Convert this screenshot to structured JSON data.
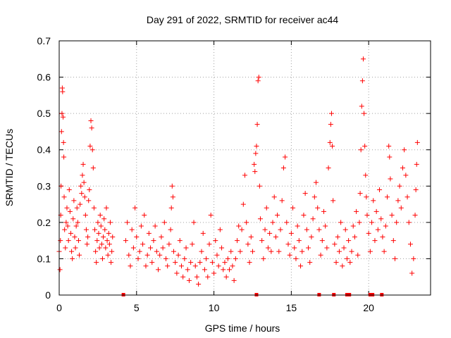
{
  "chart_data": {
    "type": "scatter",
    "title": "Day 291 of 2022, SRMTID for receiver ac44",
    "xlabel": "GPS time / hours",
    "ylabel": "SRMTID / TECUs",
    "xlim": [
      0,
      24
    ],
    "ylim": [
      0,
      0.7
    ],
    "x_ticks": [
      0,
      5,
      10,
      15,
      20
    ],
    "y_ticks": [
      0,
      0.1,
      0.2,
      0.3,
      0.4,
      0.5,
      0.6,
      0.7
    ],
    "x_tick_labels": [
      "0",
      "5",
      "10",
      "15",
      "20"
    ],
    "y_tick_labels": [
      "0",
      "0.1",
      "0.2",
      "0.3",
      "0.4",
      "0.5",
      "0.6",
      "0.7"
    ],
    "grid": true,
    "marker": "+",
    "color": "#ff0000",
    "series": [
      {
        "name": "SRMTID",
        "points": [
          [
            0.0,
            0.12
          ],
          [
            0.05,
            0.07
          ],
          [
            0.08,
            0.15
          ],
          [
            0.1,
            0.22
          ],
          [
            0.12,
            0.3
          ],
          [
            0.15,
            0.45
          ],
          [
            0.18,
            0.5
          ],
          [
            0.2,
            0.57
          ],
          [
            0.22,
            0.56
          ],
          [
            0.25,
            0.49
          ],
          [
            0.28,
            0.42
          ],
          [
            0.3,
            0.38
          ],
          [
            0.32,
            0.27
          ],
          [
            0.35,
            0.18
          ],
          [
            0.4,
            0.13
          ],
          [
            0.45,
            0.2
          ],
          [
            0.5,
            0.24
          ],
          [
            0.55,
            0.19
          ],
          [
            0.6,
            0.15
          ],
          [
            0.65,
            0.29
          ],
          [
            0.7,
            0.23
          ],
          [
            0.75,
            0.17
          ],
          [
            0.8,
            0.12
          ],
          [
            0.85,
            0.1
          ],
          [
            0.9,
            0.21
          ],
          [
            0.95,
            0.26
          ],
          [
            1.0,
            0.16
          ],
          [
            1.05,
            0.13
          ],
          [
            1.1,
            0.19
          ],
          [
            1.15,
            0.24
          ],
          [
            1.2,
            0.2
          ],
          [
            1.25,
            0.15
          ],
          [
            1.3,
            0.11
          ],
          [
            1.35,
            0.25
          ],
          [
            1.4,
            0.3
          ],
          [
            1.45,
            0.28
          ],
          [
            1.5,
            0.33
          ],
          [
            1.55,
            0.36
          ],
          [
            1.6,
            0.31
          ],
          [
            1.65,
            0.27
          ],
          [
            1.7,
            0.22
          ],
          [
            1.75,
            0.18
          ],
          [
            1.8,
            0.14
          ],
          [
            1.85,
            0.16
          ],
          [
            1.9,
            0.26
          ],
          [
            1.95,
            0.29
          ],
          [
            2.0,
            0.41
          ],
          [
            2.05,
            0.48
          ],
          [
            2.1,
            0.46
          ],
          [
            2.15,
            0.4
          ],
          [
            2.2,
            0.35
          ],
          [
            2.25,
            0.24
          ],
          [
            2.3,
            0.18
          ],
          [
            2.35,
            0.12
          ],
          [
            2.4,
            0.09
          ],
          [
            2.45,
            0.15
          ],
          [
            2.5,
            0.2
          ],
          [
            2.55,
            0.17
          ],
          [
            2.6,
            0.13
          ],
          [
            2.65,
            0.22
          ],
          [
            2.7,
            0.19
          ],
          [
            2.75,
            0.14
          ],
          [
            2.8,
            0.1
          ],
          [
            2.85,
            0.16
          ],
          [
            2.9,
            0.21
          ],
          [
            2.95,
            0.18
          ],
          [
            3.0,
            0.13
          ],
          [
            3.05,
            0.24
          ],
          [
            3.1,
            0.15
          ],
          [
            3.15,
            0.11
          ],
          [
            3.2,
            0.17
          ],
          [
            3.25,
            0.14
          ],
          [
            3.3,
            0.2
          ],
          [
            3.35,
            0.09
          ],
          [
            3.4,
            0.12
          ],
          [
            3.45,
            0.16
          ],
          [
            4.3,
            0.15
          ],
          [
            4.4,
            0.2
          ],
          [
            4.5,
            0.11
          ],
          [
            4.6,
            0.08
          ],
          [
            4.7,
            0.18
          ],
          [
            4.8,
            0.13
          ],
          [
            4.9,
            0.24
          ],
          [
            5.0,
            0.16
          ],
          [
            5.1,
            0.1
          ],
          [
            5.2,
            0.12
          ],
          [
            5.3,
            0.19
          ],
          [
            5.4,
            0.14
          ],
          [
            5.5,
            0.22
          ],
          [
            5.6,
            0.08
          ],
          [
            5.7,
            0.11
          ],
          [
            5.8,
            0.17
          ],
          [
            5.9,
            0.13
          ],
          [
            6.0,
            0.09
          ],
          [
            6.1,
            0.15
          ],
          [
            6.2,
            0.19
          ],
          [
            6.3,
            0.12
          ],
          [
            6.4,
            0.07
          ],
          [
            6.5,
            0.11
          ],
          [
            6.6,
            0.16
          ],
          [
            6.7,
            0.13
          ],
          [
            6.8,
            0.2
          ],
          [
            6.9,
            0.1
          ],
          [
            7.0,
            0.08
          ],
          [
            7.1,
            0.14
          ],
          [
            7.2,
            0.18
          ],
          [
            7.25,
            0.24
          ],
          [
            7.3,
            0.3
          ],
          [
            7.35,
            0.27
          ],
          [
            7.4,
            0.12
          ],
          [
            7.5,
            0.09
          ],
          [
            7.6,
            0.06
          ],
          [
            7.7,
            0.11
          ],
          [
            7.8,
            0.15
          ],
          [
            7.9,
            0.08
          ],
          [
            8.0,
            0.05
          ],
          [
            8.1,
            0.1
          ],
          [
            8.2,
            0.13
          ],
          [
            8.3,
            0.07
          ],
          [
            8.4,
            0.04
          ],
          [
            8.5,
            0.09
          ],
          [
            8.6,
            0.14
          ],
          [
            8.7,
            0.2
          ],
          [
            8.8,
            0.08
          ],
          [
            8.9,
            0.05
          ],
          [
            9.0,
            0.03
          ],
          [
            9.1,
            0.09
          ],
          [
            9.2,
            0.12
          ],
          [
            9.3,
            0.17
          ],
          [
            9.4,
            0.07
          ],
          [
            9.5,
            0.1
          ],
          [
            9.6,
            0.05
          ],
          [
            9.7,
            0.14
          ],
          [
            9.8,
            0.22
          ],
          [
            9.9,
            0.09
          ],
          [
            10.0,
            0.06
          ],
          [
            10.1,
            0.15
          ],
          [
            10.2,
            0.11
          ],
          [
            10.3,
            0.08
          ],
          [
            10.4,
            0.18
          ],
          [
            10.5,
            0.13
          ],
          [
            10.6,
            0.07
          ],
          [
            10.7,
            0.09
          ],
          [
            10.8,
            0.05
          ],
          [
            10.9,
            0.1
          ],
          [
            11.0,
            0.07
          ],
          [
            11.1,
            0.12
          ],
          [
            11.2,
            0.08
          ],
          [
            11.3,
            0.04
          ],
          [
            11.4,
            0.1
          ],
          [
            11.5,
            0.15
          ],
          [
            11.6,
            0.19
          ],
          [
            11.7,
            0.12
          ],
          [
            11.8,
            0.18
          ],
          [
            11.9,
            0.25
          ],
          [
            12.0,
            0.33
          ],
          [
            12.1,
            0.2
          ],
          [
            12.2,
            0.14
          ],
          [
            12.3,
            0.09
          ],
          [
            12.4,
            0.16
          ],
          [
            12.5,
            0.12
          ],
          [
            12.6,
            0.36
          ],
          [
            12.65,
            0.34
          ],
          [
            12.7,
            0.39
          ],
          [
            12.75,
            0.41
          ],
          [
            12.8,
            0.47
          ],
          [
            12.85,
            0.59
          ],
          [
            12.9,
            0.6
          ],
          [
            12.95,
            0.3
          ],
          [
            13.0,
            0.21
          ],
          [
            13.1,
            0.15
          ],
          [
            13.2,
            0.1
          ],
          [
            13.3,
            0.18
          ],
          [
            13.4,
            0.24
          ],
          [
            13.5,
            0.13
          ],
          [
            13.6,
            0.17
          ],
          [
            13.7,
            0.12
          ],
          [
            13.8,
            0.2
          ],
          [
            13.9,
            0.27
          ],
          [
            14.0,
            0.16
          ],
          [
            14.1,
            0.22
          ],
          [
            14.2,
            0.12
          ],
          [
            14.3,
            0.18
          ],
          [
            14.4,
            0.26
          ],
          [
            14.5,
            0.35
          ],
          [
            14.6,
            0.38
          ],
          [
            14.7,
            0.2
          ],
          [
            14.8,
            0.14
          ],
          [
            14.9,
            0.11
          ],
          [
            15.0,
            0.17
          ],
          [
            15.1,
            0.24
          ],
          [
            15.2,
            0.13
          ],
          [
            15.3,
            0.1
          ],
          [
            15.4,
            0.19
          ],
          [
            15.5,
            0.15
          ],
          [
            15.6,
            0.08
          ],
          [
            15.7,
            0.12
          ],
          [
            15.8,
            0.22
          ],
          [
            15.9,
            0.28
          ],
          [
            16.0,
            0.18
          ],
          [
            16.1,
            0.13
          ],
          [
            16.2,
            0.09
          ],
          [
            16.3,
            0.16
          ],
          [
            16.4,
            0.21
          ],
          [
            16.5,
            0.27
          ],
          [
            16.6,
            0.31
          ],
          [
            16.7,
            0.24
          ],
          [
            16.8,
            0.18
          ],
          [
            16.9,
            0.11
          ],
          [
            17.0,
            0.15
          ],
          [
            17.1,
            0.23
          ],
          [
            17.2,
            0.19
          ],
          [
            17.3,
            0.13
          ],
          [
            17.4,
            0.35
          ],
          [
            17.5,
            0.42
          ],
          [
            17.55,
            0.47
          ],
          [
            17.6,
            0.5
          ],
          [
            17.65,
            0.41
          ],
          [
            17.7,
            0.26
          ],
          [
            17.8,
            0.14
          ],
          [
            17.9,
            0.09
          ],
          [
            18.0,
            0.16
          ],
          [
            18.1,
            0.12
          ],
          [
            18.2,
            0.2
          ],
          [
            18.3,
            0.08
          ],
          [
            18.4,
            0.13
          ],
          [
            18.5,
            0.18
          ],
          [
            18.6,
            0.1
          ],
          [
            18.7,
            0.15
          ],
          [
            18.8,
            0.09
          ],
          [
            18.9,
            0.12
          ],
          [
            19.0,
            0.19
          ],
          [
            19.1,
            0.16
          ],
          [
            19.2,
            0.23
          ],
          [
            19.3,
            0.11
          ],
          [
            19.4,
            0.2
          ],
          [
            19.45,
            0.28
          ],
          [
            19.5,
            0.4
          ],
          [
            19.55,
            0.52
          ],
          [
            19.6,
            0.59
          ],
          [
            19.65,
            0.65
          ],
          [
            19.7,
            0.5
          ],
          [
            19.75,
            0.41
          ],
          [
            19.8,
            0.33
          ],
          [
            19.85,
            0.27
          ],
          [
            19.9,
            0.22
          ],
          [
            20.0,
            0.17
          ],
          [
            20.1,
            0.12
          ],
          [
            20.2,
            0.2
          ],
          [
            20.3,
            0.26
          ],
          [
            20.4,
            0.15
          ],
          [
            20.5,
            0.23
          ],
          [
            20.6,
            0.18
          ],
          [
            20.7,
            0.29
          ],
          [
            20.8,
            0.21
          ],
          [
            20.9,
            0.16
          ],
          [
            21.0,
            0.12
          ],
          [
            21.1,
            0.19
          ],
          [
            21.2,
            0.27
          ],
          [
            21.3,
            0.41
          ],
          [
            21.35,
            0.38
          ],
          [
            21.4,
            0.32
          ],
          [
            21.5,
            0.22
          ],
          [
            21.6,
            0.15
          ],
          [
            21.7,
            0.1
          ],
          [
            21.8,
            0.2
          ],
          [
            21.9,
            0.26
          ],
          [
            22.0,
            0.3
          ],
          [
            22.1,
            0.24
          ],
          [
            22.2,
            0.35
          ],
          [
            22.3,
            0.4
          ],
          [
            22.4,
            0.33
          ],
          [
            22.5,
            0.27
          ],
          [
            22.6,
            0.2
          ],
          [
            22.7,
            0.14
          ],
          [
            22.8,
            0.06
          ],
          [
            22.9,
            0.1
          ],
          [
            23.0,
            0.22
          ],
          [
            23.05,
            0.29
          ],
          [
            23.1,
            0.36
          ],
          [
            23.15,
            0.42
          ]
        ]
      }
    ],
    "baseline_marks": [
      4.15,
      12.75,
      16.8,
      17.75,
      18.6,
      18.75,
      20.1,
      20.25,
      20.85
    ]
  }
}
